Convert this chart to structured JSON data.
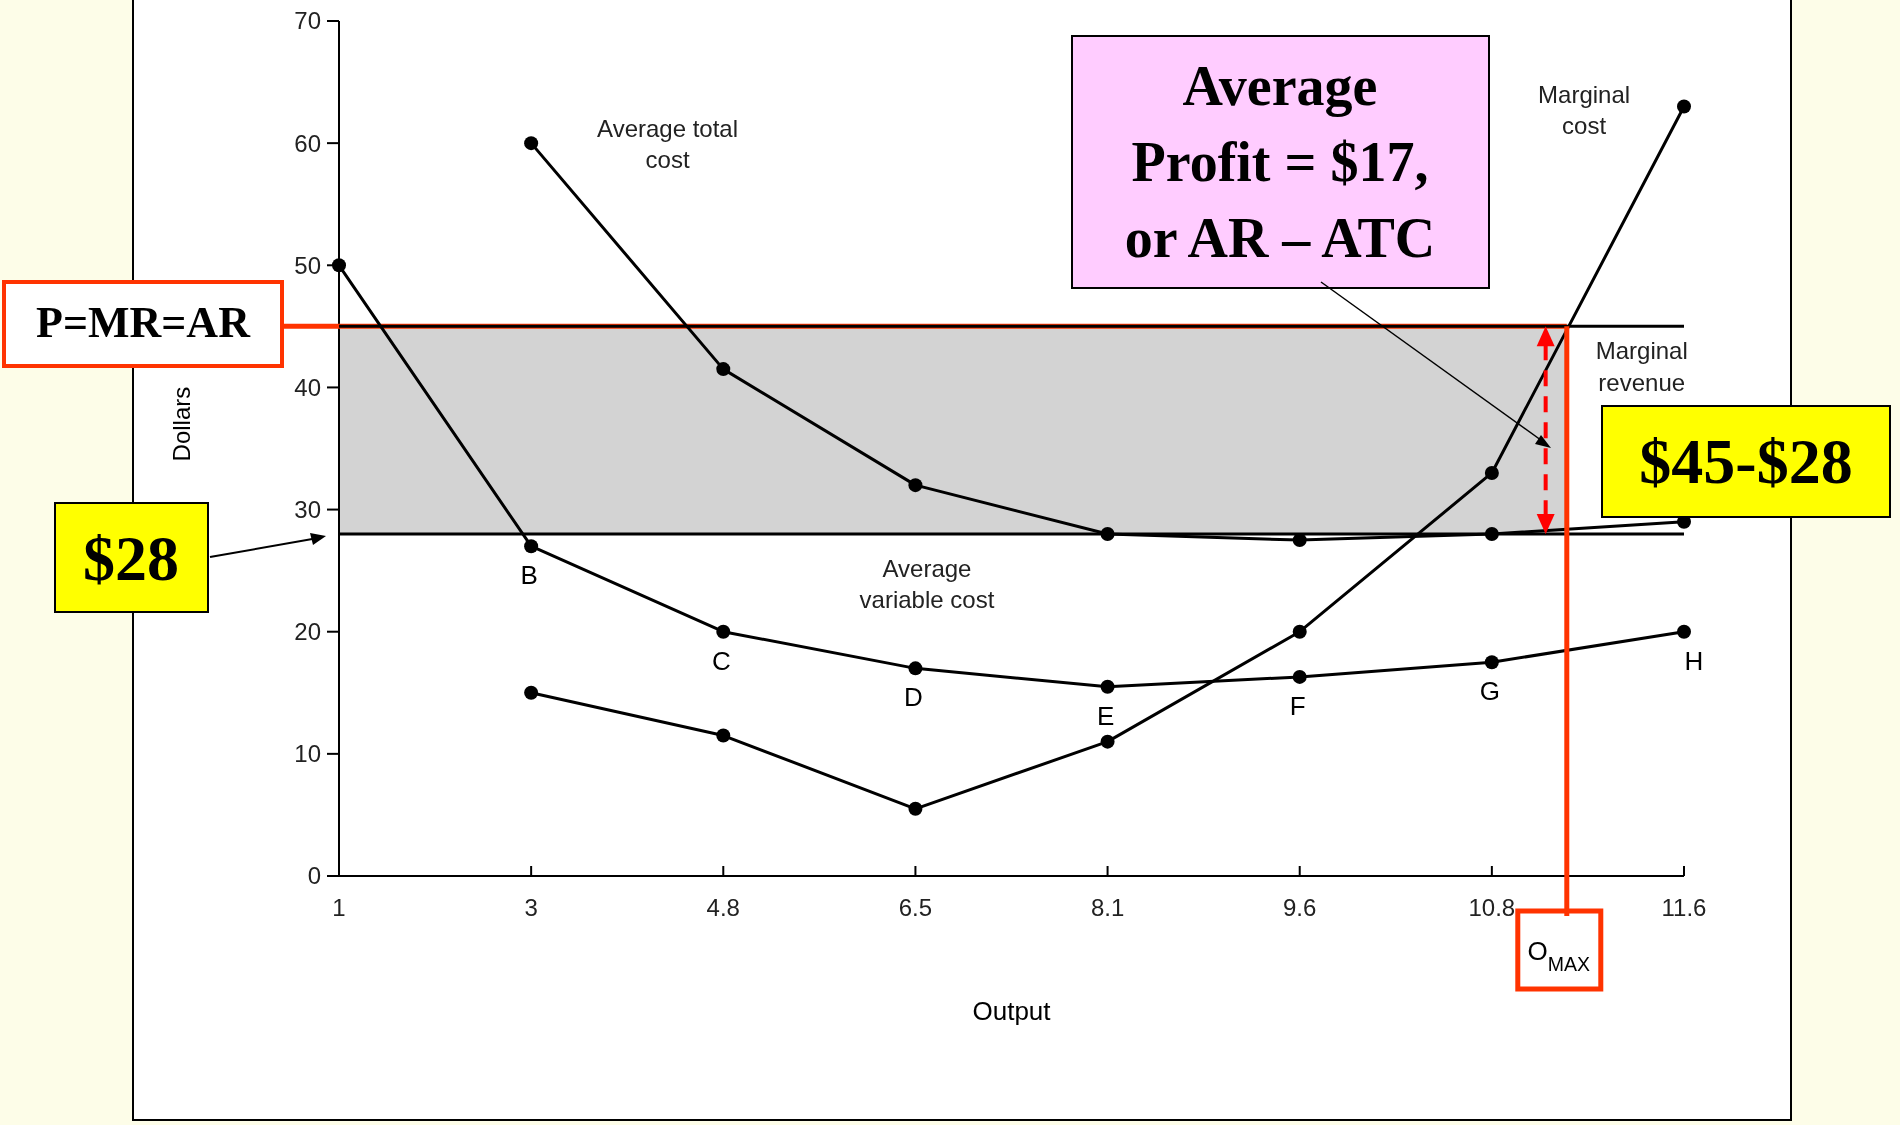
{
  "chart_data": {
    "type": "line",
    "xlabel": "Output",
    "ylabel": "Dollars",
    "categories": [
      "1",
      "3",
      "4.8",
      "6.5",
      "8.1",
      "9.6",
      "10.8",
      "11.6"
    ],
    "series": [
      {
        "color": "#000000",
        "values": [
          null,
          60,
          41.5,
          32,
          28,
          27.5,
          28,
          29
        ]
      },
      {
        "color": "#000000",
        "values": [
          50,
          27,
          20,
          17,
          15.5,
          16.3,
          17.5,
          20
        ],
        "value_labels": [
          null,
          "B",
          "C",
          "D",
          "E",
          "F",
          "G",
          "H"
        ]
      },
      {
        "color": "#000000",
        "values": [
          null,
          15,
          11.5,
          5.5,
          11,
          20,
          33,
          63
        ]
      },
      {
        "name": "Marginal revenue",
        "color": "#000000",
        "marker": "none",
        "values": [
          45,
          45,
          45,
          45,
          45,
          45,
          45,
          45
        ]
      }
    ],
    "ylim": [
      0,
      70
    ],
    "yticks": [
      0,
      10,
      20,
      30,
      40,
      50,
      60,
      70
    ],
    "grid": false,
    "marker": "circle",
    "line_style": "solid",
    "ref_lines": [
      {
        "axis": "y",
        "value": 45,
        "label": "P=MR=AR",
        "color": "#ff3300"
      },
      {
        "axis": "y",
        "value": 28,
        "label": "$28",
        "color": "#000000"
      }
    ],
    "bands": [
      {
        "axis": "y",
        "from": 28,
        "to": 45,
        "color": "#d3d3d3"
      }
    ],
    "annotations": [
      "Average total cost",
      "Average variable cost",
      "Marginal cost",
      "Average Profit = $17, or AR – ATC",
      "$45-$28",
      "O$_{MAX}$"
    ]
  }
}
